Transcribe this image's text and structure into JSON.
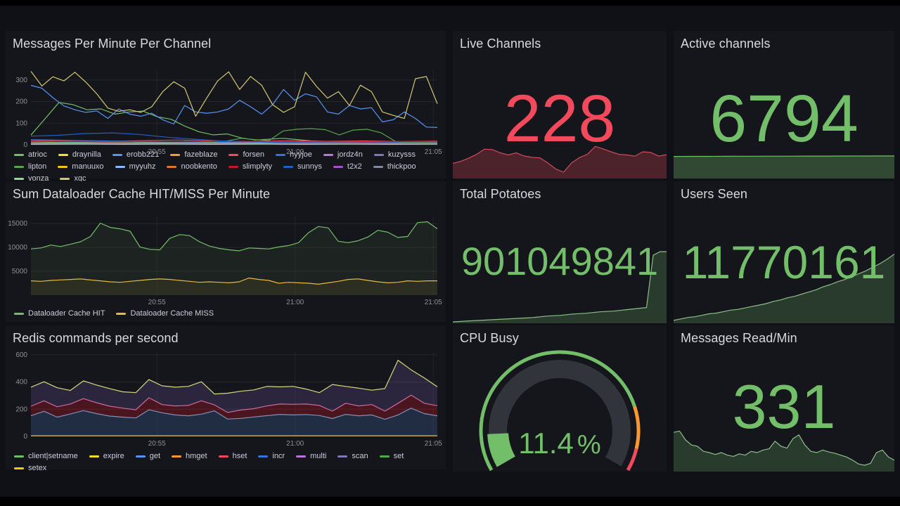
{
  "page": {
    "dashboard_bg": "#101116",
    "panel_bg": "#15161b",
    "title_color": "#d8d9da",
    "axis_color": "#8e9099",
    "legend_color": "#ccccdc",
    "red": "#F2495C",
    "green": "#73BF69",
    "orange": "#FF9830"
  },
  "panels": {
    "messages_per_minute": {
      "title": "Messages Per Minute Per Channel"
    },
    "live_channels": {
      "title": "Live Channels",
      "value": "228",
      "color": "#F2495C"
    },
    "active_channels": {
      "title": "Active channels",
      "value": "6794",
      "color": "#73BF69"
    },
    "dataloader": {
      "title": "Sum Dataloader Cache HIT/MISS Per Minute"
    },
    "total_potatoes": {
      "title": "Total Potatoes",
      "value": "901049841",
      "color": "#73BF69"
    },
    "users_seen": {
      "title": "Users Seen",
      "value": "11770161",
      "color": "#73BF69"
    },
    "redis": {
      "title": "Redis commands per second"
    },
    "cpu_busy": {
      "title": "CPU Busy",
      "value": "11.4",
      "unit": "%",
      "color": "#73BF69"
    },
    "messages_read": {
      "title": "Messages Read/Min",
      "value": "331",
      "color": "#73BF69"
    }
  },
  "chart_data": [
    {
      "id": "messages",
      "type": "line",
      "title": "Messages Per Minute Per Channel",
      "ylim": [
        0,
        345
      ],
      "yticks": [
        0,
        100,
        200,
        300
      ],
      "xticks": [
        {
          "label": "20:55",
          "pos": 0.31
        },
        {
          "label": "21:00",
          "pos": 0.65
        },
        {
          "label": "21:05",
          "pos": 0.99
        }
      ],
      "series": [
        {
          "name": "atrioc",
          "color": "#73BF69",
          "values": [
            45,
            120,
            196,
            186,
            162,
            166,
            142,
            152,
            156,
            130,
            118,
            86,
            60,
            46,
            50,
            32,
            22,
            26,
            30,
            24,
            18,
            15,
            14,
            12,
            10,
            12,
            14,
            12,
            10,
            11
          ]
        },
        {
          "name": "draynilla",
          "color": "#FADE2A",
          "values": [
            10,
            12,
            9,
            11,
            10,
            12,
            9,
            11,
            10,
            11
          ]
        },
        {
          "name": "erobb221",
          "color": "#5794F2",
          "values": [
            275,
            262,
            218,
            180,
            162,
            150,
            157,
            122,
            166,
            142,
            132,
            146,
            116,
            96,
            182,
            152,
            146,
            152,
            166,
            206,
            176,
            142,
            186,
            256,
            206,
            236,
            222,
            152,
            142,
            182,
            166,
            172,
            106,
            116,
            152,
            122,
            82,
            80
          ]
        },
        {
          "name": "fazeblaze",
          "color": "#FF9830",
          "values": [
            7,
            8,
            6,
            7,
            8,
            6,
            7,
            8,
            7,
            7
          ]
        },
        {
          "name": "forsen",
          "color": "#F2495C",
          "values": [
            18,
            20,
            16,
            19,
            22,
            17,
            15,
            19,
            16,
            18,
            15,
            17
          ]
        },
        {
          "name": "hyyjoe",
          "color": "#3274D9",
          "values": [
            24,
            20,
            17,
            14,
            12,
            13,
            12,
            11,
            12,
            11
          ]
        },
        {
          "name": "jordz4n",
          "color": "#B877D9",
          "values": [
            5,
            6,
            5,
            6,
            5,
            6,
            5,
            6,
            5,
            6
          ]
        },
        {
          "name": "kuzysss",
          "color": "#7C78B8",
          "values": [
            9,
            10,
            9,
            10,
            9,
            10,
            9,
            10,
            9,
            10
          ]
        },
        {
          "name": "lipton",
          "color": "#56A64B",
          "values": [
            12,
            10,
            11,
            12,
            10,
            11,
            12,
            10,
            12,
            14,
            12,
            15,
            14,
            12,
            18,
            30,
            24,
            20,
            64,
            72,
            75,
            70,
            46,
            68,
            72,
            55,
            16,
            10,
            12,
            10
          ]
        },
        {
          "name": "manuuxo",
          "color": "#F2CC0C",
          "values": [
            4,
            5,
            4,
            5,
            4,
            5,
            4,
            5,
            4,
            5
          ]
        },
        {
          "name": "myyuhz",
          "color": "#8AB8FF",
          "values": [
            8,
            9,
            8,
            9,
            8,
            9,
            8,
            9,
            8,
            9
          ]
        },
        {
          "name": "noobkento",
          "color": "#E0752D",
          "values": [
            6,
            5,
            6,
            5,
            6,
            5,
            6,
            5,
            6,
            5
          ]
        },
        {
          "name": "slimplyty",
          "color": "#C4162A",
          "values": [
            14,
            16,
            13,
            15,
            14,
            16,
            13,
            15,
            14,
            13,
            15,
            14
          ]
        },
        {
          "name": "sunnys",
          "color": "#1F60C4",
          "values": [
            40,
            44,
            52,
            55,
            48,
            35,
            26,
            18,
            14,
            11,
            9,
            8,
            8,
            9,
            8,
            8
          ]
        },
        {
          "name": "t2x2",
          "color": "#A352CC",
          "values": [
            3,
            4,
            3,
            4,
            3,
            4,
            3,
            4,
            3,
            4
          ]
        },
        {
          "name": "thickpoo",
          "color": "#8087A2",
          "values": [
            7,
            6,
            7,
            6,
            7,
            6,
            7,
            6,
            7,
            6
          ]
        },
        {
          "name": "vonza",
          "color": "#96D98D",
          "values": [
            2,
            3,
            2,
            3,
            2,
            3,
            2,
            3,
            2,
            3
          ]
        },
        {
          "name": "xqc",
          "color": "#D3C871",
          "values": [
            340,
            272,
            315,
            296,
            336,
            290,
            236,
            170,
            155,
            162,
            150,
            176,
            246,
            292,
            262,
            132,
            216,
            296,
            338,
            256,
            316,
            276,
            186,
            150,
            176,
            336,
            270,
            216,
            246,
            182,
            276,
            246,
            152,
            136,
            122,
            306,
            316,
            190
          ]
        }
      ]
    },
    {
      "id": "dataloader",
      "type": "line",
      "title": "Sum Dataloader Cache HIT/MISS Per Minute",
      "ylim": [
        0,
        16500
      ],
      "yticks": [
        5000,
        10000,
        15000
      ],
      "xticks": [
        {
          "label": "20:55",
          "pos": 0.31
        },
        {
          "label": "21:00",
          "pos": 0.65
        },
        {
          "label": "21:05",
          "pos": 0.99
        }
      ],
      "series": [
        {
          "name": "Dataloader Cache HIT",
          "color": "#73BF69",
          "fill": "rgba(115,191,105,0.08)",
          "values": [
            9700,
            9900,
            10500,
            10200,
            10700,
            11200,
            12300,
            15100,
            14200,
            13900,
            13400,
            10100,
            9600,
            9500,
            11900,
            12700,
            12500,
            11200,
            10300,
            9800,
            9500,
            9300,
            9900,
            9800,
            9700,
            10100,
            10400,
            11000,
            13100,
            14400,
            14100,
            11300,
            11000,
            11400,
            12200,
            13600,
            13200,
            12100,
            12300,
            15200,
            15400,
            13900
          ]
        },
        {
          "name": "Dataloader Cache MISS",
          "color": "#EAB839",
          "fill": "rgba(234,184,57,0.08)",
          "values": [
            3000,
            2900,
            3100,
            3200,
            3300,
            3400,
            3200,
            3000,
            2800,
            2700,
            2900,
            3100,
            3300,
            3400,
            3300,
            3100,
            2900,
            2700,
            2800,
            2700,
            2600,
            2800,
            3600,
            3300,
            3100,
            2500,
            2700,
            2600,
            2500,
            2300,
            2600,
            2900,
            3300,
            3400,
            3100,
            2800,
            2600,
            2700,
            3000,
            2900,
            3000,
            3000
          ]
        }
      ]
    },
    {
      "id": "redis",
      "type": "stacked",
      "title": "Redis commands per second",
      "ylim": [
        0,
        620
      ],
      "yticks": [
        0,
        200,
        400,
        600
      ],
      "xticks": [
        {
          "label": "20:55",
          "pos": 0.31
        },
        {
          "label": "21:00",
          "pos": 0.65
        },
        {
          "label": "21:05",
          "pos": 0.99
        }
      ],
      "series": [
        {
          "name": "get",
          "color": "#7EA3CC",
          "fill": "rgba(87,148,242,0.18)",
          "values": [
            152,
            185,
            142,
            165,
            190,
            168,
            150,
            142,
            136,
            196,
            174,
            158,
            152,
            164,
            188,
            128,
            133,
            143,
            153,
            162,
            158,
            161,
            154,
            132,
            162,
            152,
            158,
            126,
            158,
            208,
            168,
            152
          ]
        },
        {
          "name": "hset",
          "color": "#D4689A",
          "fill": "rgba(196,22,42,0.30)",
          "values": [
            222,
            262,
            218,
            238,
            278,
            248,
            222,
            208,
            196,
            284,
            234,
            224,
            228,
            262,
            232,
            176,
            194,
            204,
            224,
            238,
            236,
            238,
            228,
            186,
            244,
            224,
            234,
            186,
            244,
            304,
            244,
            226
          ]
        },
        {
          "name": "setex",
          "color": "#D8D87E",
          "fill": "rgba(135,105,200,0.20)",
          "values": [
            362,
            402,
            358,
            338,
            408,
            378,
            352,
            328,
            322,
            418,
            372,
            362,
            368,
            402,
            312,
            318,
            332,
            342,
            368,
            364,
            368,
            348,
            322,
            382,
            368,
            355,
            340,
            352,
            560,
            490,
            430,
            365
          ]
        },
        {
          "name": "expire",
          "color": "#EAB839",
          "overlay": true,
          "values": [
            5,
            5,
            5,
            5,
            5,
            5,
            5,
            5,
            5,
            5
          ]
        }
      ],
      "legend": [
        {
          "label": "client|setname",
          "color": "#73BF69"
        },
        {
          "label": "expire",
          "color": "#FADE2A"
        },
        {
          "label": "get",
          "color": "#5794F2"
        },
        {
          "label": "hmget",
          "color": "#FF9830"
        },
        {
          "label": "hset",
          "color": "#F2495C"
        },
        {
          "label": "incr",
          "color": "#3274D9"
        },
        {
          "label": "multi",
          "color": "#B877D9"
        },
        {
          "label": "scan",
          "color": "#7C78B8"
        },
        {
          "label": "set",
          "color": "#56A64B"
        },
        {
          "label": "setex",
          "color": "#F2CC0C"
        }
      ]
    },
    {
      "id": "spark-live",
      "type": "area",
      "title": "Live Channels sparkline",
      "color": "#cf4a5c",
      "fill": "rgba(242,73,92,0.25)",
      "ylim": [
        0,
        230
      ],
      "values": [
        95,
        108,
        128,
        152,
        185,
        182,
        162,
        148,
        162,
        142,
        133,
        130,
        98,
        60,
        40,
        98,
        132,
        152,
        202,
        186,
        168,
        152,
        148,
        141,
        168,
        164,
        141,
        150
      ]
    },
    {
      "id": "spark-active",
      "type": "area",
      "title": "Active channels sparkline",
      "color": "#73BF69",
      "fill": "rgba(115,191,105,0.30)",
      "ylim": [
        0,
        7200
      ],
      "values": [
        6640,
        6660,
        6680,
        6700,
        6710,
        6720,
        6730,
        6740,
        6750,
        6760,
        6770,
        6780,
        6790,
        6794
      ]
    },
    {
      "id": "spark-potatoes",
      "type": "area",
      "title": "Total Potatoes sparkline",
      "color": "#8CBF87",
      "fill": "rgba(115,191,105,0.22)",
      "ylim": [
        0,
        105
      ],
      "values": [
        2,
        2.5,
        3,
        3.5,
        4,
        4.5,
        5,
        5.5,
        6,
        6.5,
        7,
        7.5,
        8,
        9,
        10,
        10.5,
        11,
        12,
        13,
        13.5,
        14,
        15,
        16,
        16.5,
        17,
        18,
        19,
        20,
        21,
        22,
        95,
        100,
        100
      ]
    },
    {
      "id": "spark-users",
      "type": "area",
      "title": "Users Seen sparkline",
      "color": "#8CBF87",
      "fill": "rgba(115,191,105,0.22)",
      "ylim": [
        0,
        108
      ],
      "values": [
        4,
        6,
        8,
        9,
        11,
        13,
        14,
        16,
        18,
        19,
        21,
        23,
        25,
        27,
        30,
        32,
        35,
        37,
        40,
        43,
        46,
        50,
        53,
        57,
        60,
        64,
        68,
        72,
        77,
        82,
        88,
        95
      ]
    },
    {
      "id": "spark-read",
      "type": "area",
      "title": "Messages Read/Min sparkline",
      "color": "#8CBF87",
      "fill": "rgba(115,191,105,0.22)",
      "ylim": [
        0,
        100
      ],
      "values": [
        62,
        64,
        50,
        42,
        40,
        32,
        30,
        27,
        30,
        26,
        24,
        28,
        26,
        32,
        30,
        34,
        36,
        48,
        40,
        37,
        52,
        58,
        42,
        32,
        30,
        34,
        31,
        29,
        26,
        23,
        18,
        12,
        10,
        13,
        30,
        34,
        23,
        18
      ]
    },
    {
      "id": "cpu-gauge",
      "type": "gauge",
      "title": "CPU Busy",
      "value": 11.4,
      "unit": "%",
      "min": 0,
      "max": 100,
      "sweep": 240,
      "value_color": "#73BF69",
      "bg_arc_color": "#31343b",
      "thresholds": [
        {
          "to": 80,
          "color": "#73BF69"
        },
        {
          "to": 93,
          "color": "#FF9830"
        },
        {
          "to": 100,
          "color": "#F2495C"
        }
      ]
    }
  ]
}
